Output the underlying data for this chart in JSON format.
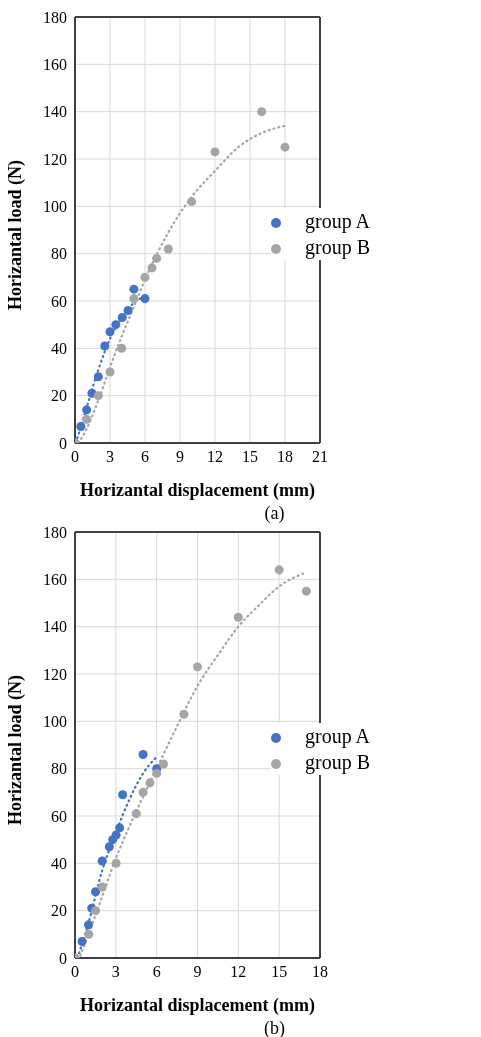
{
  "chart_data": [
    {
      "type": "scatter",
      "xlabel": "Horizantal displacement (mm)",
      "ylabel": "Horizantal load (N)",
      "annotations": [
        "(a)"
      ],
      "xlim": [
        0,
        21
      ],
      "xticks": [
        0,
        3,
        6,
        9,
        12,
        15,
        18,
        21
      ],
      "ylim": [
        0,
        180
      ],
      "yticks": [
        0,
        20,
        40,
        60,
        80,
        100,
        120,
        140,
        160,
        180
      ],
      "grid": true,
      "legend": "right",
      "marker": "circle",
      "series": [
        {
          "name": "group A",
          "color": "#4472c4",
          "x": [
            0.5,
            1.0,
            1.45,
            2.0,
            2.55,
            3.0,
            3.5,
            4.05,
            4.55,
            5.05,
            6.0
          ],
          "values": [
            7,
            14,
            21,
            28,
            41,
            47,
            50,
            53,
            56,
            65,
            61
          ]
        },
        {
          "name": "group B",
          "color": "#a5a5a5",
          "x": [
            0,
            1.0,
            2.0,
            3.0,
            4.0,
            5.05,
            6.0,
            6.6,
            7.0,
            8.0,
            10.0,
            12.0,
            16.0,
            18.0
          ],
          "values": [
            0,
            10,
            20,
            30,
            40,
            61,
            70,
            74,
            78,
            82,
            102,
            123,
            140,
            125
          ]
        },
        {
          "type": "line",
          "line_style": "dotted",
          "marker": "none",
          "color": "#4472c4",
          "x": [
            0.2,
            1,
            2,
            3,
            4,
            5,
            6
          ],
          "values": [
            2,
            15,
            31,
            44,
            53,
            59,
            62
          ]
        },
        {
          "type": "line",
          "line_style": "dotted",
          "marker": "none",
          "color": "#a5a5a5",
          "x": [
            0.3,
            1,
            2,
            3,
            4,
            5,
            6,
            8,
            10,
            12,
            14,
            16,
            18
          ],
          "values": [
            0,
            6,
            18,
            32,
            45,
            57,
            69,
            89,
            104,
            115,
            125,
            131,
            134
          ]
        }
      ]
    },
    {
      "type": "scatter",
      "xlabel": "Horizantal displacement (mm)",
      "ylabel": "Horizantal load (N)",
      "annotations": [
        "(b)"
      ],
      "xlim": [
        0,
        18
      ],
      "xticks": [
        0,
        3,
        6,
        9,
        12,
        15,
        18
      ],
      "ylim": [
        0,
        180
      ],
      "yticks": [
        0,
        20,
        40,
        60,
        80,
        100,
        120,
        140,
        160,
        180
      ],
      "grid": true,
      "legend": "right",
      "marker": "circle",
      "series": [
        {
          "name": "group A",
          "color": "#4472c4",
          "x": [
            0.52,
            0.99,
            1.23,
            1.51,
            2.0,
            2.52,
            2.77,
            3.02,
            3.28,
            3.5,
            5.0,
            6.0
          ],
          "values": [
            7,
            14,
            21,
            28,
            41,
            47,
            50,
            52,
            55,
            69,
            86,
            80
          ]
        },
        {
          "name": "group B",
          "color": "#a5a5a5",
          "x": [
            0,
            1.02,
            1.51,
            2.0,
            3.02,
            4.5,
            5.0,
            5.5,
            6.0,
            6.5,
            8.0,
            9.0,
            12.0,
            15.0,
            17.0
          ],
          "values": [
            0,
            10,
            20,
            30,
            40,
            61,
            70,
            74,
            78,
            82,
            103,
            123,
            144,
            164,
            155
          ]
        },
        {
          "type": "line",
          "line_style": "dotted",
          "marker": "none",
          "color": "#4472c4",
          "x": [
            0.3,
            1,
            2,
            3,
            4,
            5,
            6
          ],
          "values": [
            2,
            15,
            37,
            53,
            67,
            78,
            85
          ]
        },
        {
          "type": "line",
          "line_style": "dotted",
          "marker": "none",
          "color": "#a5a5a5",
          "x": [
            0.4,
            1.5,
            3,
            4.5,
            6,
            7.5,
            9,
            10.5,
            12,
            13.5,
            15,
            17
          ],
          "values": [
            1,
            18,
            42,
            62,
            80,
            98,
            115,
            128,
            140,
            149,
            157,
            163
          ]
        }
      ]
    }
  ]
}
